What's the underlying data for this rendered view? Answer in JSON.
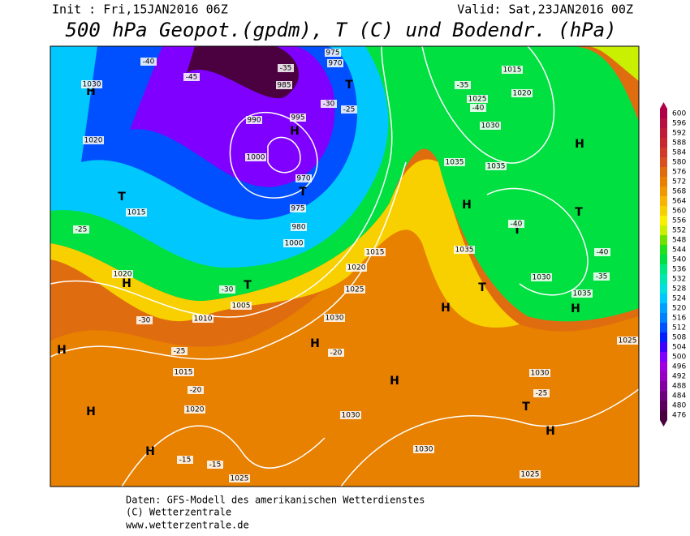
{
  "header": {
    "init": "Init : Fri,15JAN2016 06Z",
    "valid": "Valid: Sat,23JAN2016 00Z",
    "title": "500 hPa Geopot.(gpdm), T (C) und Bodendr. (hPa)"
  },
  "colorbar": {
    "ticks": [
      600,
      596,
      592,
      588,
      584,
      580,
      576,
      572,
      568,
      564,
      560,
      556,
      552,
      548,
      544,
      540,
      536,
      532,
      528,
      524,
      520,
      516,
      512,
      508,
      504,
      500,
      496,
      492,
      488,
      484,
      480,
      476
    ],
    "colors": [
      "#b00048",
      "#b81040",
      "#c01c38",
      "#c82830",
      "#d03c28",
      "#d85020",
      "#e06c10",
      "#e88000",
      "#f09800",
      "#f8b400",
      "#f8d000",
      "#f8f000",
      "#c8f000",
      "#70e000",
      "#20e020",
      "#00e040",
      "#00e880",
      "#00e8b0",
      "#00e0e0",
      "#00c8ff",
      "#00a0ff",
      "#0080ff",
      "#0050ff",
      "#0020ff",
      "#4000ff",
      "#8000ff",
      "#a000e0",
      "#9600c0",
      "#8200a0",
      "#6e0080",
      "#5a0060",
      "#4b0040"
    ]
  },
  "map_labels": [
    "H",
    "1030",
    "1020",
    "T",
    "1015",
    "-25",
    "1020",
    "H",
    "-30",
    "1010",
    "1005",
    "T",
    "-30",
    "H",
    "1015",
    "-25",
    "-20",
    "1020",
    "H",
    "H",
    "-15",
    "-15",
    "1025",
    "-40",
    "-45",
    "985",
    "990",
    "995",
    "H",
    "1000",
    "970",
    "T",
    "975",
    "980",
    "1000",
    "-35",
    "T",
    "970",
    "-30",
    "-25",
    "1015",
    "1020",
    "1025",
    "H",
    "-20",
    "1030",
    "H",
    "1030",
    "1030",
    "1035",
    "H",
    "1035",
    "-35",
    "-40",
    "1025",
    "1030",
    "1035",
    "T",
    "1015",
    "1020",
    "H",
    "T",
    "T",
    "-40",
    "1030",
    "1035",
    "H",
    "-35",
    "-25",
    "T",
    "H",
    "1030",
    "1025",
    "1025",
    "H",
    "-40",
    "975"
  ],
  "footer": [
    "Daten: GFS-Modell des amerikanischen Wetterdienstes",
    "(C) Wetterzentrale",
    "www.wetterzentrale.de"
  ]
}
